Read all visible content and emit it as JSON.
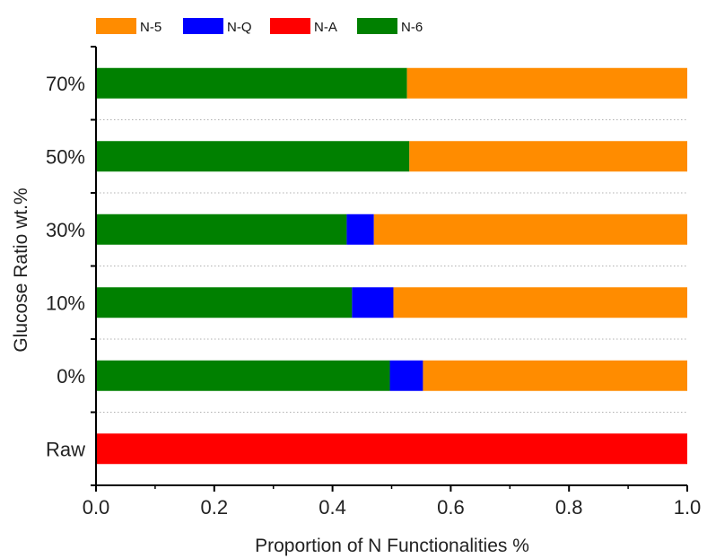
{
  "chart_data": {
    "type": "bar",
    "orientation": "horizontal",
    "stacked": true,
    "categories": [
      "Raw",
      "0%",
      "10%",
      "30%",
      "50%",
      "70%"
    ],
    "series": [
      {
        "name": "N-6",
        "color": "#008000",
        "values": [
          0,
          0.497,
          0.433,
          0.424,
          0.53,
          0.526
        ]
      },
      {
        "name": "N-A",
        "color": "#ff0000",
        "values": [
          1.0,
          0,
          0,
          0,
          0,
          0
        ]
      },
      {
        "name": "N-Q",
        "color": "#0000ff",
        "values": [
          0,
          0.056,
          0.07,
          0.046,
          0,
          0
        ]
      },
      {
        "name": "N-5",
        "color": "#ff8c00",
        "values": [
          0,
          0.447,
          0.497,
          0.53,
          0.47,
          0.474
        ]
      }
    ],
    "legend_order": [
      "N-5",
      "N-Q",
      "N-A",
      "N-6"
    ],
    "legend_position": "top",
    "xlabel": "Proportion of N Functionalities %",
    "ylabel": "Glucose Ratio wt.%",
    "xlim": [
      0.0,
      1.0
    ],
    "xticks": [
      "0.0",
      "0.2",
      "0.4",
      "0.6",
      "0.8",
      "1.0"
    ],
    "grid": "horizontal dotted"
  }
}
